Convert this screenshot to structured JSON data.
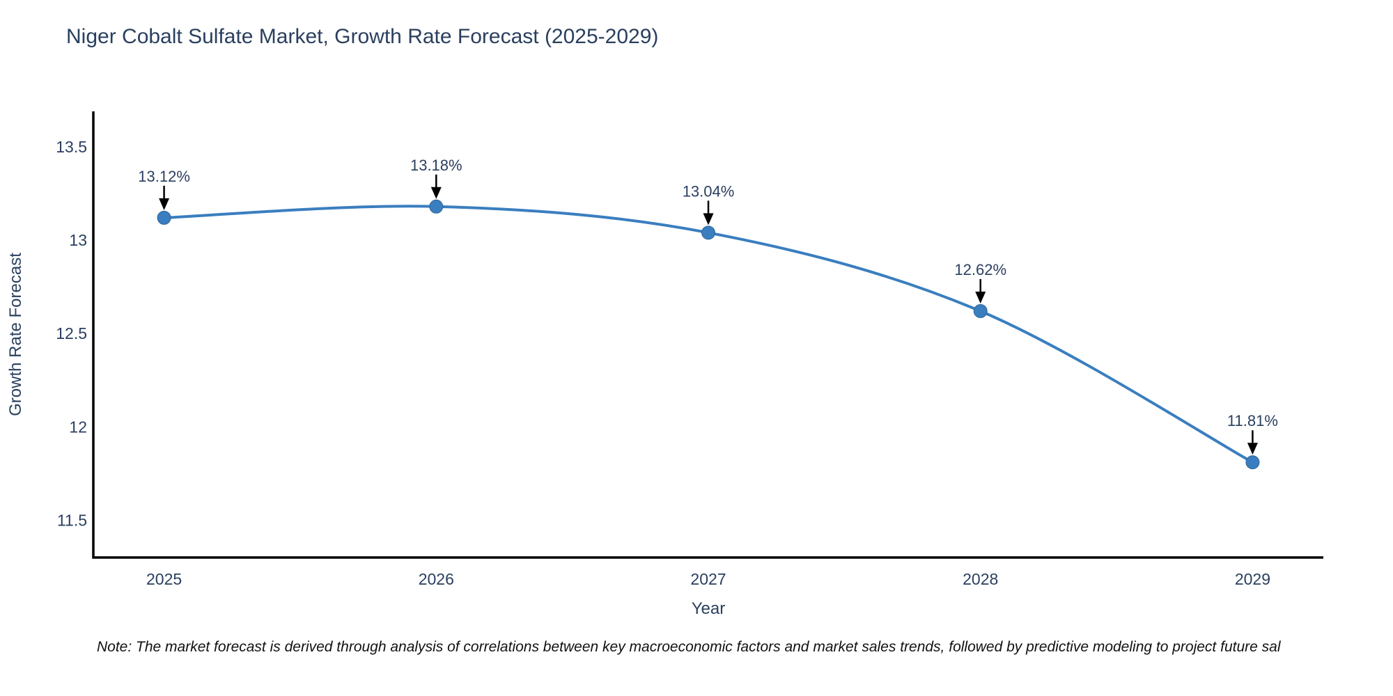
{
  "title": "Niger Cobalt Sulfate Market, Growth Rate Forecast (2025-2029)",
  "note": "Note: The market forecast is derived through analysis of correlations between key macroeconomic factors and market sales trends, followed by predictive modeling to project future sal",
  "chart_data": {
    "type": "line",
    "curve": "spline",
    "title": "Niger Cobalt Sulfate Market, Growth Rate Forecast (2025-2029)",
    "xlabel": "Year",
    "ylabel": "Growth Rate Forecast",
    "x": [
      2025,
      2026,
      2027,
      2028,
      2029
    ],
    "series": [
      {
        "name": "Growth Rate Forecast",
        "values": [
          13.12,
          13.18,
          13.04,
          12.62,
          11.81
        ]
      }
    ],
    "point_labels": [
      "13.12%",
      "13.18%",
      "13.04%",
      "12.62%",
      "11.81%"
    ],
    "xlim": [
      2024.74,
      2029.26
    ],
    "ylim": [
      11.3,
      13.69
    ],
    "xticks": [
      2025,
      2026,
      2027,
      2028,
      2029
    ],
    "xtick_labels": [
      "2025",
      "2026",
      "2027",
      "2028",
      "2029"
    ],
    "yticks": [
      13.5,
      13.0,
      12.5,
      12.0,
      11.5
    ],
    "ytick_labels": [
      "13.5",
      "13",
      "12.5",
      "12",
      "11.5"
    ],
    "grid": false,
    "legend_position": "none",
    "line_color": "#3a7ebf",
    "marker_color": "#3a7ebf",
    "marker_edge_color": "#2f6699",
    "axis_line_color": "#000000",
    "annotation_arrow_color": "#000000"
  }
}
